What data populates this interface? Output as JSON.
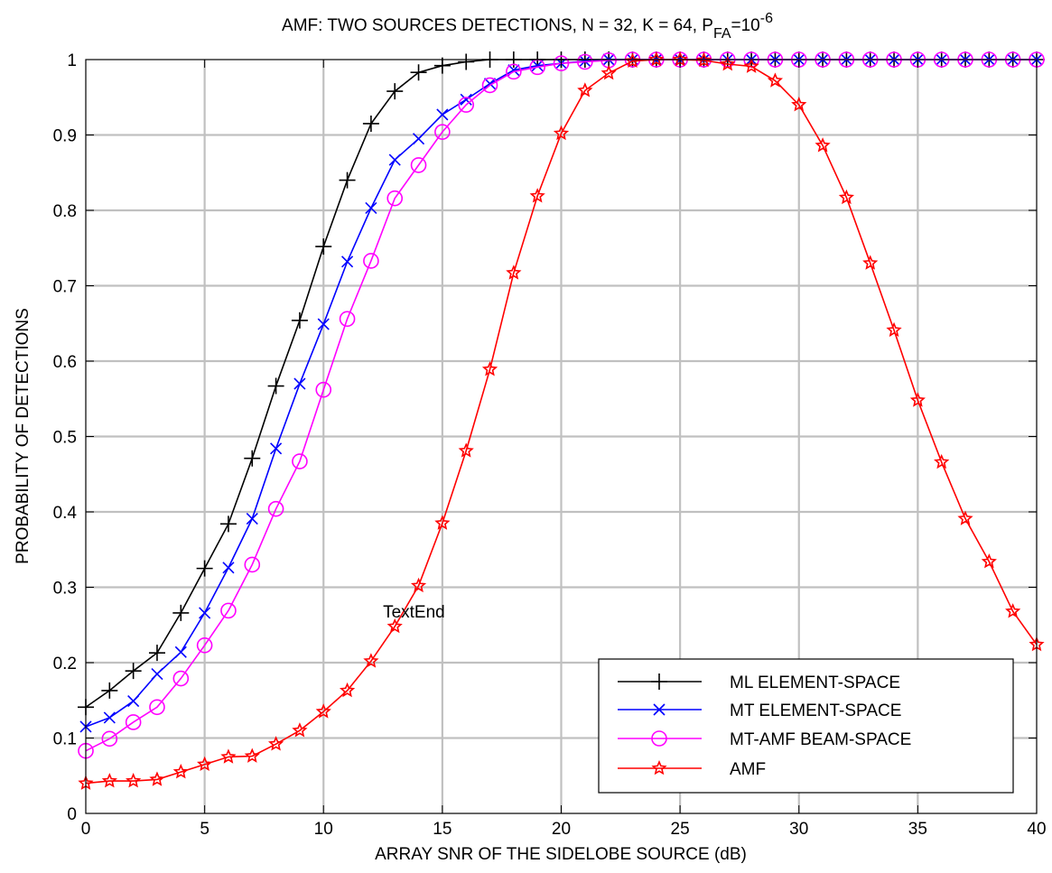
{
  "chart_data": {
    "type": "line",
    "title": {
      "main": "AMF: TWO SOURCES DETECTIONS, N = 32, K = 64, P",
      "sub": "FA",
      "mid": "=10",
      "sup": "-6"
    },
    "xlabel": "ARRAY SNR OF THE SIDELOBE SOURCE (dB)",
    "ylabel": "PROBABILITY OF DETECTIONS",
    "xlim": [
      0,
      40
    ],
    "ylim": [
      0,
      1
    ],
    "xticks": [
      "0",
      "5",
      "10",
      "15",
      "20",
      "25",
      "30",
      "35",
      "40"
    ],
    "yticks": [
      "0",
      "0.1",
      "0.2",
      "0.3",
      "0.4",
      "0.5",
      "0.6",
      "0.7",
      "0.8",
      "0.9",
      "1"
    ],
    "grid": true,
    "legend_position": "bottom-right",
    "annotation": {
      "text": "TextEnd",
      "x": 12.5,
      "y": 0.26
    },
    "x": [
      0,
      1,
      2,
      3,
      4,
      5,
      6,
      7,
      8,
      9,
      10,
      11,
      12,
      13,
      14,
      15,
      16,
      17,
      18,
      19,
      20,
      21,
      22,
      23,
      24,
      25,
      26,
      27,
      28,
      29,
      30,
      31,
      32,
      33,
      34,
      35,
      36,
      37,
      38,
      39,
      40
    ],
    "series": [
      {
        "name": "ML ELEMENT-SPACE",
        "color": "#000000",
        "marker": "plus",
        "values": [
          0.141,
          0.163,
          0.189,
          0.213,
          0.266,
          0.325,
          0.384,
          0.471,
          0.567,
          0.654,
          0.752,
          0.84,
          0.915,
          0.958,
          0.983,
          0.992,
          0.997,
          1,
          1,
          1,
          1,
          1,
          1,
          1,
          1,
          1,
          1,
          1,
          1,
          1,
          1,
          1,
          1,
          1,
          1,
          1,
          1,
          1,
          1,
          1,
          1
        ]
      },
      {
        "name": "MT ELEMENT-SPACE",
        "color": "#0000ff",
        "marker": "x",
        "values": [
          0.115,
          0.127,
          0.149,
          0.185,
          0.214,
          0.266,
          0.326,
          0.391,
          0.484,
          0.57,
          0.649,
          0.732,
          0.803,
          0.867,
          0.895,
          0.927,
          0.947,
          0.968,
          0.986,
          0.992,
          0.995,
          0.998,
          1,
          1,
          1,
          1,
          1,
          1,
          1,
          1,
          1,
          1,
          1,
          1,
          1,
          1,
          1,
          1,
          1,
          1,
          1
        ]
      },
      {
        "name": "MT-AMF BEAM-SPACE",
        "color": "#ff00ff",
        "marker": "circle",
        "values": [
          0.083,
          0.099,
          0.121,
          0.141,
          0.179,
          0.223,
          0.269,
          0.33,
          0.404,
          0.467,
          0.562,
          0.656,
          0.733,
          0.816,
          0.86,
          0.904,
          0.94,
          0.966,
          0.984,
          0.99,
          0.995,
          0.997,
          0.999,
          1,
          1,
          1,
          1,
          1,
          1,
          1,
          1,
          1,
          1,
          1,
          1,
          1,
          1,
          1,
          1,
          1,
          1
        ]
      },
      {
        "name": "AMF",
        "color": "#ff0000",
        "marker": "star",
        "values": [
          0.04,
          0.043,
          0.043,
          0.045,
          0.055,
          0.065,
          0.075,
          0.076,
          0.092,
          0.11,
          0.135,
          0.163,
          0.202,
          0.248,
          0.302,
          0.385,
          0.481,
          0.589,
          0.717,
          0.819,
          0.902,
          0.959,
          0.982,
          0.998,
          1,
          1,
          0.999,
          0.994,
          0.991,
          0.972,
          0.94,
          0.886,
          0.817,
          0.73,
          0.641,
          0.548,
          0.466,
          0.391,
          0.334,
          0.268,
          0.224
        ]
      }
    ]
  }
}
